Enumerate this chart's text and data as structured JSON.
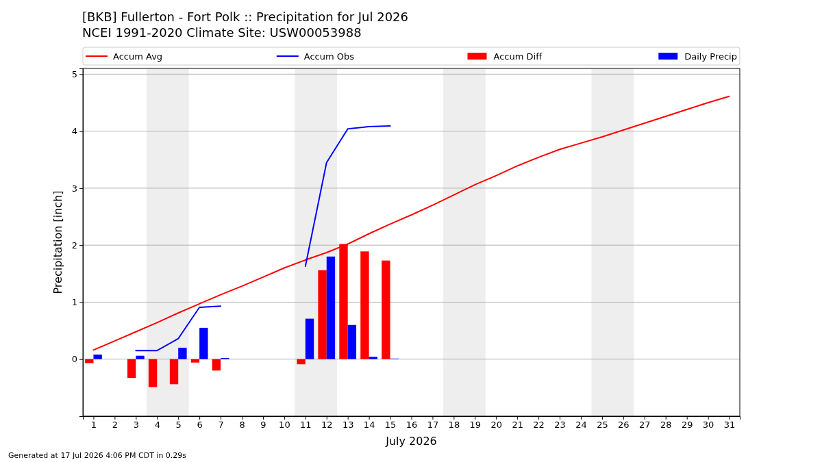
{
  "chart_data": {
    "type": "bar",
    "title": "[BKB] Fullerton - Fort Polk :: Precipitation for Jul 2026",
    "subtitle": "NCEI 1991-2020 Climate Site: USW00053988",
    "xlabel": "July 2026",
    "ylabel": "Precipitation [inch]",
    "annotations": [
      "Generated at 17 Jul 2026 4:06 PM CDT in 0.29s"
    ],
    "x": [
      1,
      2,
      3,
      4,
      5,
      6,
      7,
      8,
      9,
      10,
      11,
      12,
      13,
      14,
      15,
      16,
      17,
      18,
      19,
      20,
      21,
      22,
      23,
      24,
      25,
      26,
      27,
      28,
      29,
      30,
      31
    ],
    "series": [
      {
        "name": "Accum Avg",
        "type": "line",
        "color": "#ff0000",
        "values": [
          0.16,
          0.32,
          0.48,
          0.64,
          0.81,
          0.97,
          1.13,
          1.28,
          1.44,
          1.6,
          1.74,
          1.87,
          2.02,
          2.2,
          2.37,
          2.53,
          2.7,
          2.88,
          3.06,
          3.22,
          3.39,
          3.54,
          3.68,
          3.79,
          3.9,
          4.02,
          4.14,
          4.26,
          4.38,
          4.5,
          4.61
        ]
      },
      {
        "name": "Accum Obs",
        "type": "line",
        "color": "#0000ff",
        "values": [
          null,
          null,
          0.15,
          0.15,
          0.36,
          0.91,
          0.93,
          null,
          null,
          null,
          1.63,
          3.45,
          4.04,
          4.08,
          4.09,
          null,
          null,
          null,
          null,
          null,
          null,
          null,
          null,
          null,
          null,
          null,
          null,
          null,
          null,
          null,
          null
        ]
      },
      {
        "name": "Accum Diff",
        "color": "#ff0000",
        "values": [
          -0.07,
          null,
          -0.33,
          -0.49,
          -0.44,
          -0.06,
          -0.2,
          null,
          null,
          null,
          -0.09,
          1.56,
          2.02,
          1.89,
          1.73,
          null,
          null,
          null,
          null,
          null,
          null,
          null,
          null,
          null,
          null,
          null,
          null,
          null,
          null,
          null,
          null
        ]
      },
      {
        "name": "Daily Precip",
        "color": "#0000ff",
        "values": [
          0.08,
          null,
          0.06,
          null,
          0.2,
          0.55,
          0.02,
          null,
          null,
          null,
          0.71,
          1.8,
          0.6,
          0.04,
          0.01,
          null,
          null,
          null,
          null,
          null,
          null,
          null,
          null,
          null,
          null,
          null,
          null,
          null,
          null,
          null,
          null
        ]
      }
    ],
    "xlim": [
      0.5,
      31.5
    ],
    "xticks": [
      1,
      2,
      3,
      4,
      5,
      6,
      7,
      8,
      9,
      10,
      11,
      12,
      13,
      14,
      15,
      16,
      17,
      18,
      19,
      20,
      21,
      22,
      23,
      24,
      25,
      26,
      27,
      28,
      29,
      30,
      31
    ],
    "ylim": [
      -1,
      5.1
    ],
    "yticks": [
      0,
      1,
      2,
      3,
      4,
      5
    ],
    "grid": "y",
    "legend": "top",
    "bands": [
      {
        "axis": "x",
        "from": 3.5,
        "to": 5.5,
        "color": "#eeeeee"
      },
      {
        "axis": "x",
        "from": 10.5,
        "to": 12.5,
        "color": "#eeeeee"
      },
      {
        "axis": "x",
        "from": 17.5,
        "to": 19.5,
        "color": "#eeeeee"
      },
      {
        "axis": "x",
        "from": 24.5,
        "to": 26.5,
        "color": "#eeeeee"
      }
    ]
  }
}
